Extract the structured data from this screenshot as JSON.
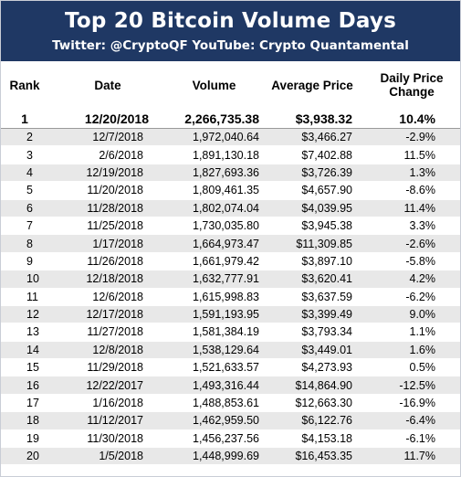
{
  "banner": {
    "title": "Top 20 Bitcoin Volume Days",
    "subtitle": "Twitter: @CryptoQF YouTube: Crypto Quantamental"
  },
  "columns": {
    "rank": "Rank",
    "date": "Date",
    "volume": "Volume",
    "avg_price": "Average Price",
    "daily_change_line1": "Daily Price",
    "daily_change_line2": "Change"
  },
  "rows": [
    {
      "rank": "1",
      "date": "12/20/2018",
      "volume": "2,266,735.38",
      "price": "$3,938.32",
      "change": "10.4%"
    },
    {
      "rank": "2",
      "date": "12/7/2018",
      "volume": "1,972,040.64",
      "price": "$3,466.27",
      "change": "-2.9%"
    },
    {
      "rank": "3",
      "date": "2/6/2018",
      "volume": "1,891,130.18",
      "price": "$7,402.88",
      "change": "11.5%"
    },
    {
      "rank": "4",
      "date": "12/19/2018",
      "volume": "1,827,693.36",
      "price": "$3,726.39",
      "change": "1.3%"
    },
    {
      "rank": "5",
      "date": "11/20/2018",
      "volume": "1,809,461.35",
      "price": "$4,657.90",
      "change": "-8.6%"
    },
    {
      "rank": "6",
      "date": "11/28/2018",
      "volume": "1,802,074.04",
      "price": "$4,039.95",
      "change": "11.4%"
    },
    {
      "rank": "7",
      "date": "11/25/2018",
      "volume": "1,730,035.80",
      "price": "$3,945.38",
      "change": "3.3%"
    },
    {
      "rank": "8",
      "date": "1/17/2018",
      "volume": "1,664,973.47",
      "price": "$11,309.85",
      "change": "-2.6%"
    },
    {
      "rank": "9",
      "date": "11/26/2018",
      "volume": "1,661,979.42",
      "price": "$3,897.10",
      "change": "-5.8%"
    },
    {
      "rank": "10",
      "date": "12/18/2018",
      "volume": "1,632,777.91",
      "price": "$3,620.41",
      "change": "4.2%"
    },
    {
      "rank": "11",
      "date": "12/6/2018",
      "volume": "1,615,998.83",
      "price": "$3,637.59",
      "change": "-6.2%"
    },
    {
      "rank": "12",
      "date": "12/17/2018",
      "volume": "1,591,193.95",
      "price": "$3,399.49",
      "change": "9.0%"
    },
    {
      "rank": "13",
      "date": "11/27/2018",
      "volume": "1,581,384.19",
      "price": "$3,793.34",
      "change": "1.1%"
    },
    {
      "rank": "14",
      "date": "12/8/2018",
      "volume": "1,538,129.64",
      "price": "$3,449.01",
      "change": "1.6%"
    },
    {
      "rank": "15",
      "date": "11/29/2018",
      "volume": "1,521,633.57",
      "price": "$4,273.93",
      "change": "0.5%"
    },
    {
      "rank": "16",
      "date": "12/22/2017",
      "volume": "1,493,316.44",
      "price": "$14,864.90",
      "change": "-12.5%"
    },
    {
      "rank": "17",
      "date": "1/16/2018",
      "volume": "1,488,853.61",
      "price": "$12,663.30",
      "change": "-16.9%"
    },
    {
      "rank": "18",
      "date": "11/12/2017",
      "volume": "1,462,959.50",
      "price": "$6,122.76",
      "change": "-6.4%"
    },
    {
      "rank": "19",
      "date": "11/30/2018",
      "volume": "1,456,237.56",
      "price": "$4,153.18",
      "change": "-6.1%"
    },
    {
      "rank": "20",
      "date": "1/5/2018",
      "volume": "1,448,999.69",
      "price": "$16,453.35",
      "change": "11.7%"
    }
  ]
}
